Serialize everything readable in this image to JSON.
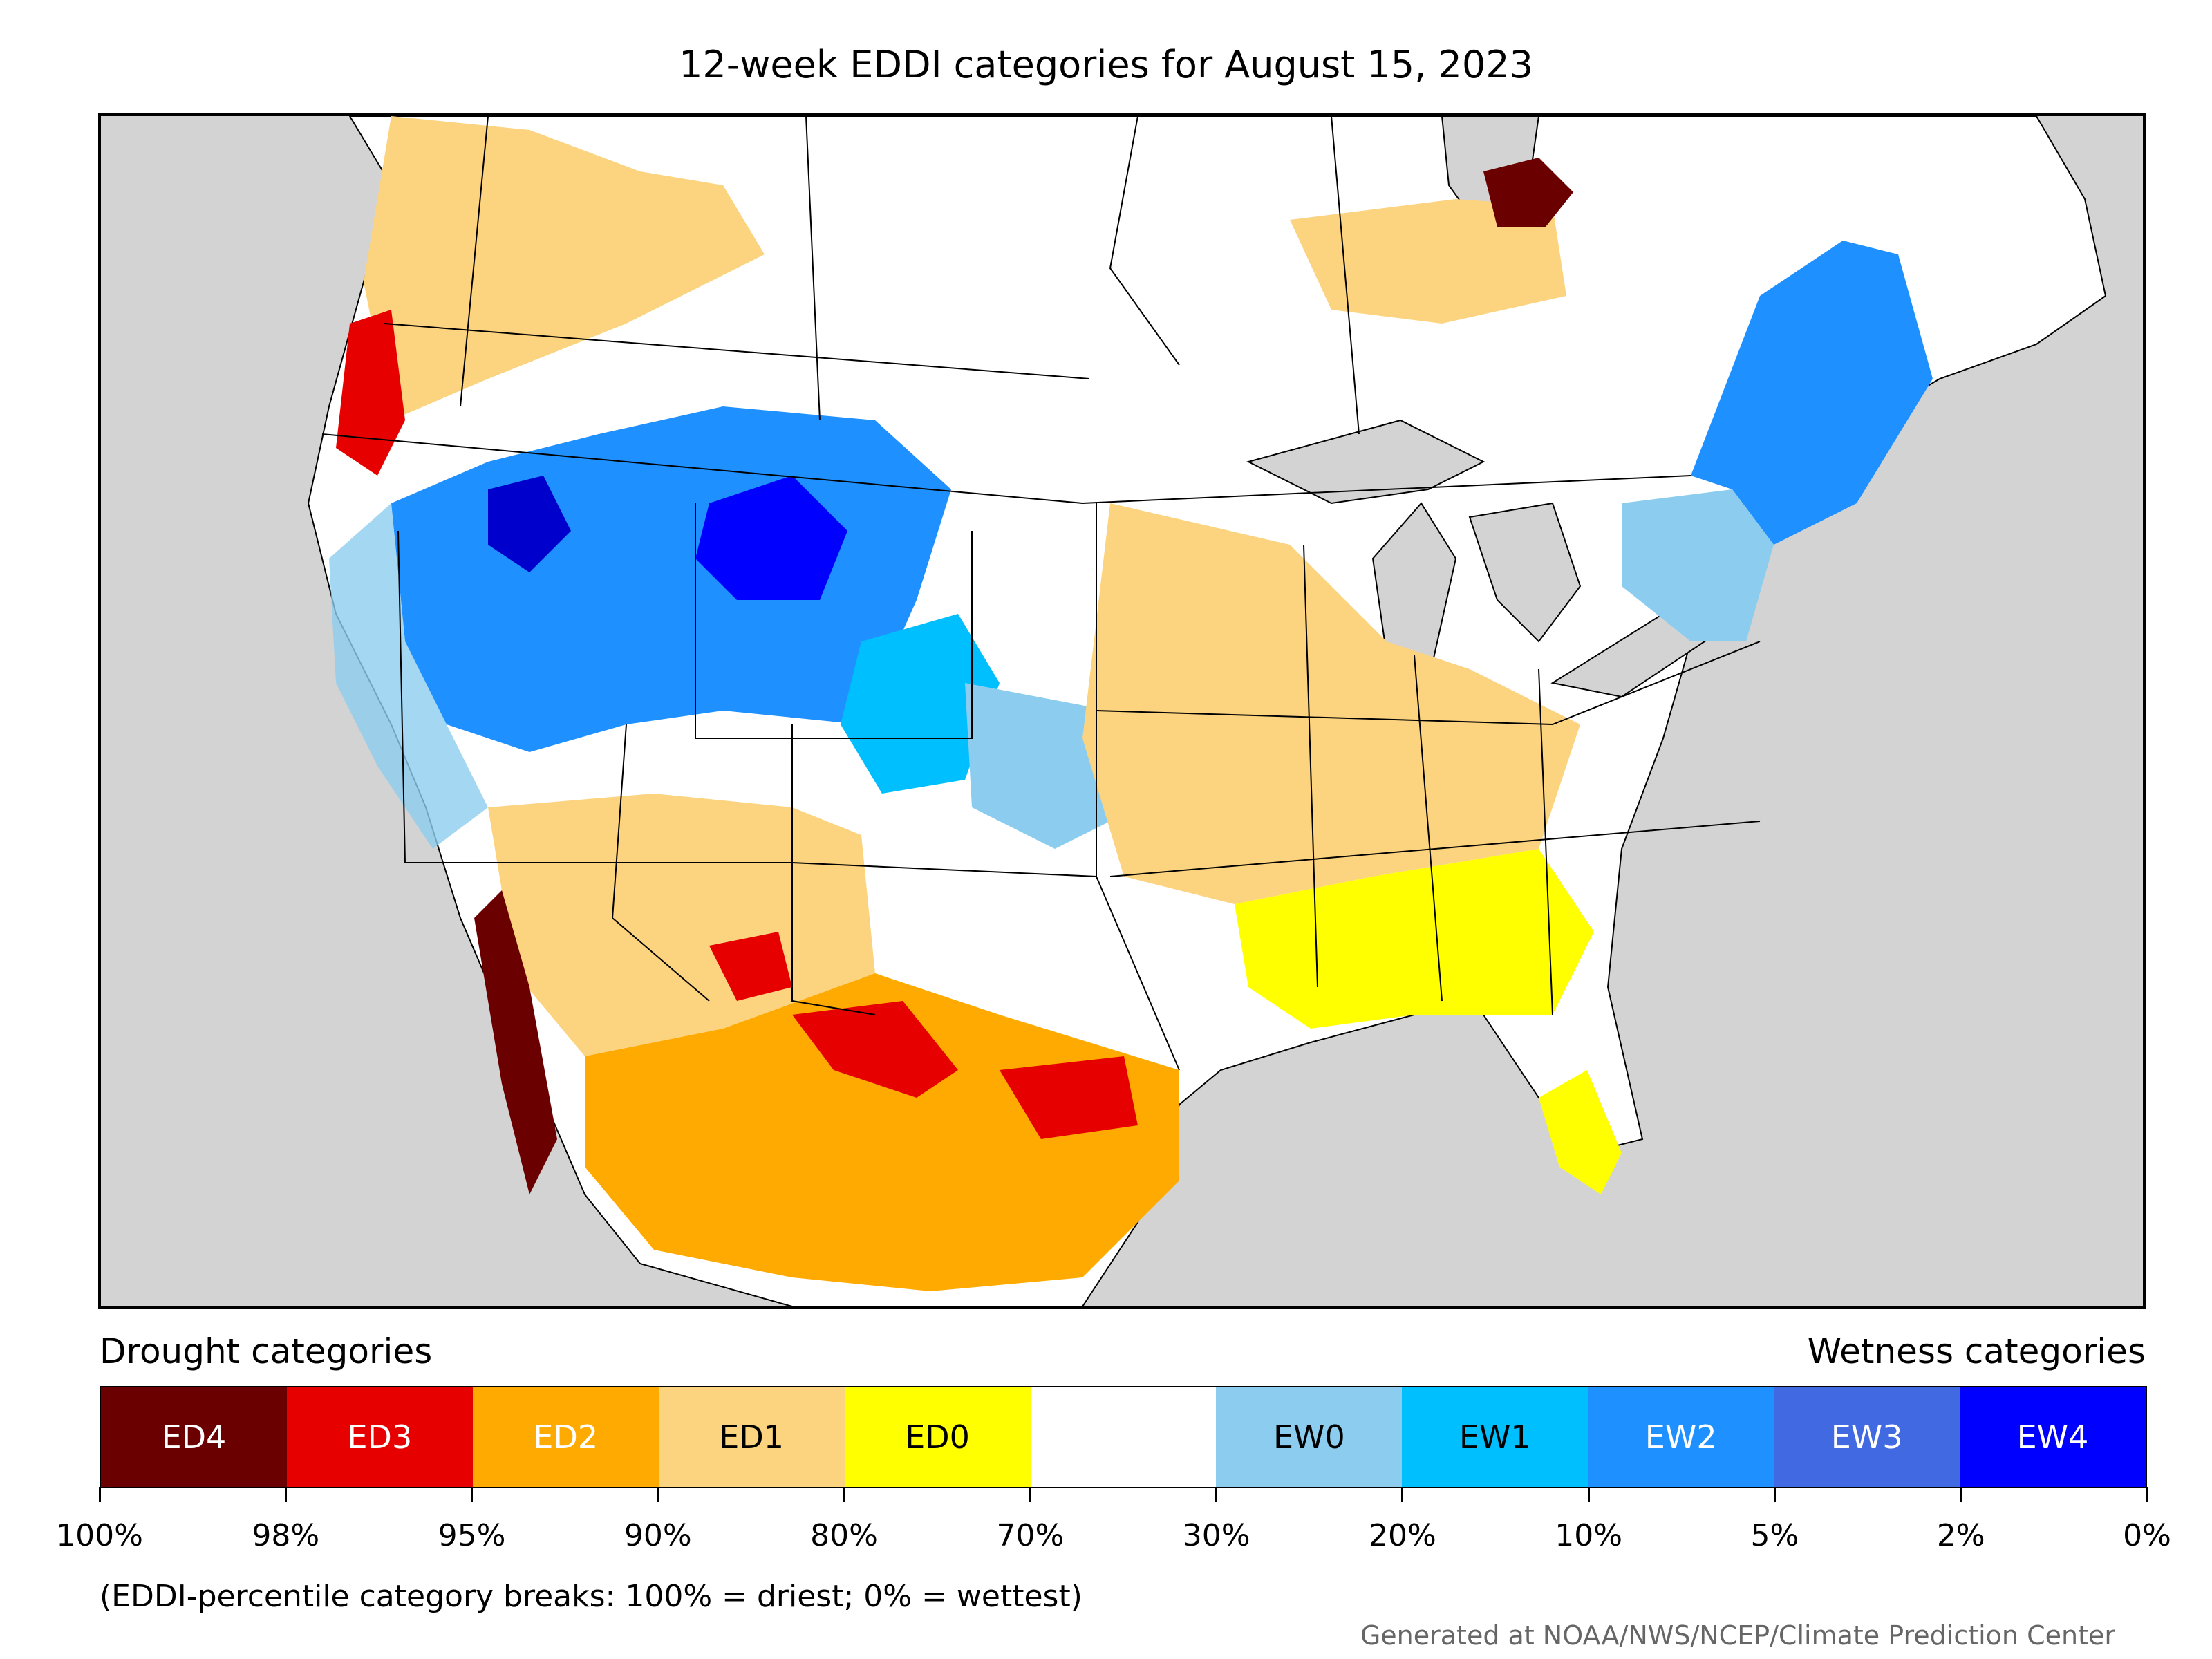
{
  "title": "12-week EDDI categories for August 15, 2023",
  "legend": {
    "drought_heading": "Drought categories",
    "wetness_heading": "Wetness categories",
    "categories": [
      {
        "label": "ED4",
        "color": "#6b0000",
        "text_color": "#ffffff"
      },
      {
        "label": "ED3",
        "color": "#e60000",
        "text_color": "#ffffff"
      },
      {
        "label": "ED2",
        "color": "#ffaa00",
        "text_color": "#ffffff"
      },
      {
        "label": "ED1",
        "color": "#fcd37f",
        "text_color": "#000000"
      },
      {
        "label": "ED0",
        "color": "#ffff00",
        "text_color": "#000000"
      },
      {
        "label": "",
        "color": "#ffffff",
        "text_color": "#000000"
      },
      {
        "label": "EW0",
        "color": "#8ccdef",
        "text_color": "#000000"
      },
      {
        "label": "EW1",
        "color": "#00bfff",
        "text_color": "#000000"
      },
      {
        "label": "EW2",
        "color": "#1e90ff",
        "text_color": "#ffffff"
      },
      {
        "label": "EW3",
        "color": "#4169e1",
        "text_color": "#ffffff"
      },
      {
        "label": "EW4",
        "color": "#0000ff",
        "text_color": "#ffffff"
      }
    ],
    "breaks": [
      "100%",
      "98%",
      "95%",
      "90%",
      "80%",
      "70%",
      "30%",
      "20%",
      "10%",
      "5%",
      "2%",
      "0%"
    ],
    "note": "(EDDI-percentile category breaks: 100% = driest; 0% = wettest)"
  },
  "credit": "Generated at NOAA/NWS/NCEP/Climate Prediction Center",
  "map": {
    "land_color": "#ffffff",
    "water_color": "#d3d3d3",
    "regions": [
      {
        "name": "pacific-northwest-coast",
        "category": "ED3"
      },
      {
        "name": "northern-rockies-plateau",
        "category": "EW2"
      },
      {
        "name": "wyoming-basin",
        "category": "EW4"
      },
      {
        "name": "southern-arizona",
        "category": "ED2"
      },
      {
        "name": "central-texas",
        "category": "ED3"
      },
      {
        "name": "midwest-corn-belt",
        "category": "ED1"
      },
      {
        "name": "new-england-quebec",
        "category": "EW2"
      },
      {
        "name": "northern-ontario",
        "category": "ED4"
      }
    ]
  }
}
